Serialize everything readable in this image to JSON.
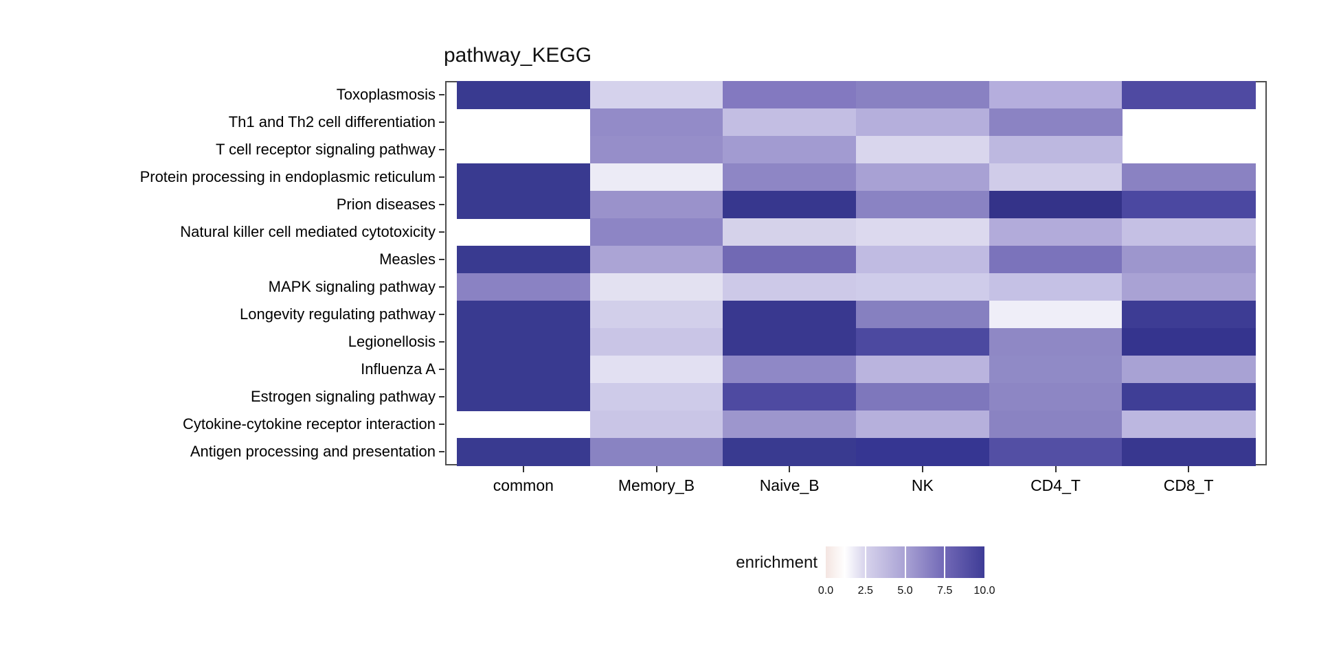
{
  "title": "pathway_KEGG",
  "legend": {
    "label": "enrichment",
    "ticks": [
      "0.0",
      "2.5",
      "5.0",
      "7.5",
      "10.0"
    ]
  },
  "chart_data": {
    "type": "heatmap",
    "title": "pathway_KEGG",
    "xlabel": "",
    "ylabel": "",
    "legend_title": "enrichment",
    "x_categories": [
      "common",
      "Memory_B",
      "Naive_B",
      "NK",
      "CD4_T",
      "CD8_T"
    ],
    "y_categories": [
      "Toxoplasmosis",
      "Th1 and Th2 cell differentiation",
      "T cell receptor signaling pathway",
      "Protein processing in endoplasmic reticulum",
      "Prion diseases",
      "Natural killer cell mediated cytotoxicity",
      "Measles",
      "MAPK signaling pathway",
      "Longevity regulating pathway",
      "Legionellosis",
      "Influenza A",
      "Estrogen signaling pathway",
      "Cytokine-cytokine receptor interaction",
      "Antigen processing and presentation"
    ],
    "values": [
      [
        10,
        2.5,
        6.6,
        6.3,
        4.1,
        9.2
      ],
      [
        null,
        5.8,
        3.4,
        4.1,
        6.2,
        null
      ],
      [
        null,
        5.6,
        5.0,
        2.4,
        3.7,
        null
      ],
      [
        10,
        1.7,
        6.0,
        4.7,
        2.8,
        6.3
      ],
      [
        10,
        5.4,
        10,
        6.3,
        10,
        9.4
      ],
      [
        null,
        6.1,
        2.5,
        2.2,
        4.3,
        3.3
      ],
      [
        10,
        4.6,
        7.5,
        3.6,
        7.0,
        5.2
      ],
      [
        6.3,
        2.0,
        2.9,
        2.7,
        3.3,
        4.7
      ],
      [
        10,
        2.6,
        10,
        6.4,
        1.6,
        10
      ],
      [
        10,
        3.1,
        10,
        9.3,
        6.0,
        10
      ],
      [
        10,
        2.0,
        6.0,
        3.8,
        5.9,
        4.7
      ],
      [
        10,
        2.8,
        9.2,
        6.8,
        6.1,
        9.9
      ],
      [
        null,
        3.1,
        5.2,
        4.0,
        6.3,
        3.7
      ],
      [
        10,
        6.3,
        10,
        10,
        9.0,
        10
      ]
    ],
    "colors": [
      [
        "#393a90",
        "#d5d2ec",
        "#8379c0",
        "#8981c2",
        "#b5aedd",
        "#4f4aa2"
      ],
      [
        null,
        "#938bc8",
        "#c3bee3",
        "#b5afdc",
        "#8b83c3",
        null
      ],
      [
        null,
        "#968ec9",
        "#a29bd1",
        "#d9d6ed",
        "#bdb8e0",
        null
      ],
      [
        "#393a90",
        "#ecebf6",
        "#8e86c5",
        "#a8a1d4",
        "#d0cce9",
        "#8a82c2"
      ],
      [
        "#393a90",
        "#9a92cb",
        "#37378e",
        "#8a83c3",
        "#343389",
        "#4b48a1"
      ],
      [
        null,
        "#8d85c5",
        "#d5d2ea",
        "#dcd9ee",
        "#b2abda",
        "#c5c0e4"
      ],
      [
        "#393a90",
        "#aba4d5",
        "#7169b4",
        "#c0bbe2",
        "#7b73bb",
        "#9d96cd"
      ],
      [
        "#8a82c3",
        "#e3e1f1",
        "#cdc9e8",
        "#cfccea",
        "#c5c1e5",
        "#a9a2d4"
      ],
      [
        "#393a90",
        "#d2cfea",
        "#39388f",
        "#8680c0",
        "#efeef8",
        "#3d3c94"
      ],
      [
        "#393a90",
        "#c9c5e6",
        "#39388f",
        "#4c49a0",
        "#8f88c5",
        "#35348e"
      ],
      [
        "#393a90",
        "#e2e0f2",
        "#8f88c6",
        "#bab4de",
        "#908ac6",
        "#a8a2d4"
      ],
      [
        "#393a90",
        "#cecbe9",
        "#4e4aa1",
        "#7e77bc",
        "#8d86c4",
        "#3f3e96"
      ],
      [
        null,
        "#c9c5e6",
        "#9d96cd",
        "#b6b0dc",
        "#8a83c2",
        "#bcb7e0"
      ],
      [
        "#393a90",
        "#8983c2",
        "#393a90",
        "#363692",
        "#534fa4",
        "#38378f"
      ]
    ],
    "missing_cells_rendered_as": "white",
    "color_scale": {
      "label": "enrichment",
      "domain": [
        0,
        10
      ],
      "legend_tick_values": [
        0.0,
        2.5,
        5.0,
        7.5,
        10.0
      ],
      "stops": [
        {
          "value": 0,
          "color": "#f4e5e1"
        },
        {
          "value": 1.2,
          "color": "#ffffff"
        },
        {
          "value": 2.5,
          "color": "#d7d3ec"
        },
        {
          "value": 5,
          "color": "#a9a2d4"
        },
        {
          "value": 7.5,
          "color": "#7168b6"
        },
        {
          "value": 10,
          "color": "#3e3c96"
        }
      ]
    },
    "layout_hints": {
      "legend_position": "bottom-center",
      "panel_border": true,
      "grid": false
    }
  }
}
